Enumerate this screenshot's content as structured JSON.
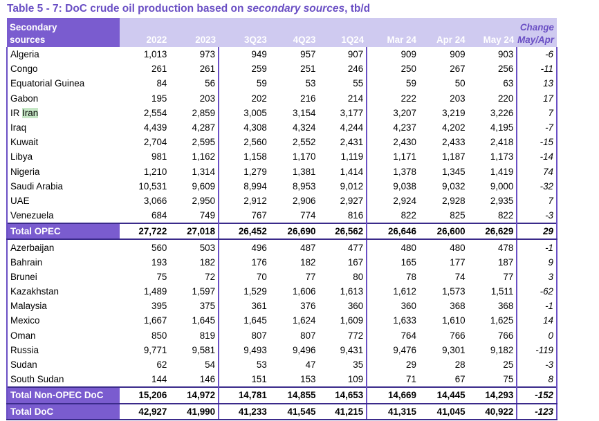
{
  "title_prefix": "Table 5 - 7: DoC crude oil production based on ",
  "title_italic": "secondary sources",
  "title_suffix": ", tb/d",
  "header": {
    "col0_line1": "Secondary",
    "col0_line2": "sources",
    "change_line1": "Change",
    "change_line2": "May/Apr",
    "periods": [
      "2022",
      "2023",
      "3Q23",
      "4Q23",
      "1Q24",
      "Mar 24",
      "Apr 24",
      "May 24"
    ]
  },
  "opec_rows": [
    {
      "name": "Algeria",
      "v": [
        "1,013",
        "973",
        "949",
        "957",
        "907",
        "909",
        "909",
        "903"
      ],
      "chg": "-6"
    },
    {
      "name": "Congo",
      "v": [
        "261",
        "261",
        "259",
        "251",
        "246",
        "250",
        "267",
        "256"
      ],
      "chg": "-11"
    },
    {
      "name": "Equatorial Guinea",
      "v": [
        "84",
        "56",
        "59",
        "53",
        "55",
        "59",
        "50",
        "63"
      ],
      "chg": "13"
    },
    {
      "name": "Gabon",
      "v": [
        "195",
        "203",
        "202",
        "216",
        "214",
        "222",
        "203",
        "220"
      ],
      "chg": "17"
    },
    {
      "name_prefix": "IR ",
      "name_hl": "Iran",
      "v": [
        "2,554",
        "2,859",
        "3,005",
        "3,154",
        "3,177",
        "3,207",
        "3,219",
        "3,226"
      ],
      "chg": "7"
    },
    {
      "name": "Iraq",
      "v": [
        "4,439",
        "4,287",
        "4,308",
        "4,324",
        "4,244",
        "4,237",
        "4,202",
        "4,195"
      ],
      "chg": "-7"
    },
    {
      "name": "Kuwait",
      "v": [
        "2,704",
        "2,595",
        "2,560",
        "2,552",
        "2,431",
        "2,430",
        "2,433",
        "2,418"
      ],
      "chg": "-15"
    },
    {
      "name": "Libya",
      "v": [
        "981",
        "1,162",
        "1,158",
        "1,170",
        "1,119",
        "1,171",
        "1,187",
        "1,173"
      ],
      "chg": "-14"
    },
    {
      "name": "Nigeria",
      "v": [
        "1,210",
        "1,314",
        "1,279",
        "1,381",
        "1,414",
        "1,378",
        "1,345",
        "1,419"
      ],
      "chg": "74"
    },
    {
      "name": "Saudi Arabia",
      "v": [
        "10,531",
        "9,609",
        "8,994",
        "8,953",
        "9,012",
        "9,038",
        "9,032",
        "9,000"
      ],
      "chg": "-32"
    },
    {
      "name": "UAE",
      "v": [
        "3,066",
        "2,950",
        "2,912",
        "2,906",
        "2,927",
        "2,924",
        "2,928",
        "2,935"
      ],
      "chg": "7"
    },
    {
      "name": "Venezuela",
      "v": [
        "684",
        "749",
        "767",
        "774",
        "816",
        "822",
        "825",
        "822"
      ],
      "chg": "-3"
    }
  ],
  "total_opec": {
    "name": "Total  OPEC",
    "v": [
      "27,722",
      "27,018",
      "26,452",
      "26,690",
      "26,562",
      "26,646",
      "26,600",
      "26,629"
    ],
    "chg": "29"
  },
  "nonopec_rows": [
    {
      "name": "Azerbaijan",
      "v": [
        "560",
        "503",
        "496",
        "487",
        "477",
        "480",
        "480",
        "478"
      ],
      "chg": "-1"
    },
    {
      "name": "Bahrain",
      "v": [
        "193",
        "182",
        "176",
        "182",
        "167",
        "165",
        "177",
        "187"
      ],
      "chg": "9"
    },
    {
      "name": "Brunei",
      "v": [
        "75",
        "72",
        "70",
        "77",
        "80",
        "78",
        "74",
        "77"
      ],
      "chg": "3"
    },
    {
      "name": "Kazakhstan",
      "v": [
        "1,489",
        "1,597",
        "1,529",
        "1,606",
        "1,613",
        "1,612",
        "1,573",
        "1,511"
      ],
      "chg": "-62"
    },
    {
      "name": "Malaysia",
      "v": [
        "395",
        "375",
        "361",
        "376",
        "360",
        "360",
        "368",
        "368"
      ],
      "chg": "-1"
    },
    {
      "name": "Mexico",
      "v": [
        "1,667",
        "1,645",
        "1,645",
        "1,624",
        "1,609",
        "1,633",
        "1,610",
        "1,625"
      ],
      "chg": "14"
    },
    {
      "name": "Oman",
      "v": [
        "850",
        "819",
        "807",
        "807",
        "772",
        "764",
        "766",
        "766"
      ],
      "chg": "0"
    },
    {
      "name": "Russia",
      "v": [
        "9,771",
        "9,581",
        "9,493",
        "9,496",
        "9,431",
        "9,476",
        "9,301",
        "9,182"
      ],
      "chg": "-119"
    },
    {
      "name": "Sudan",
      "v": [
        "62",
        "54",
        "53",
        "47",
        "35",
        "29",
        "28",
        "25"
      ],
      "chg": "-3"
    },
    {
      "name": "South Sudan",
      "v": [
        "144",
        "146",
        "151",
        "153",
        "109",
        "71",
        "67",
        "75"
      ],
      "chg": "8"
    }
  ],
  "total_nonopec": {
    "name": "Total Non-OPEC DoC",
    "v": [
      "15,206",
      "14,972",
      "14,781",
      "14,855",
      "14,653",
      "14,669",
      "14,445",
      "14,293"
    ],
    "chg": "-152"
  },
  "total_doc": {
    "name": "Total DoC",
    "v": [
      "42,927",
      "41,990",
      "41,233",
      "41,545",
      "41,215",
      "41,315",
      "41,045",
      "40,922"
    ],
    "chg": "-123"
  },
  "colors": {
    "accent": "#7a5ccf",
    "header_bg": "#cfcaf0",
    "title": "#6a4fc4",
    "highlight": "#c6e7c6"
  }
}
